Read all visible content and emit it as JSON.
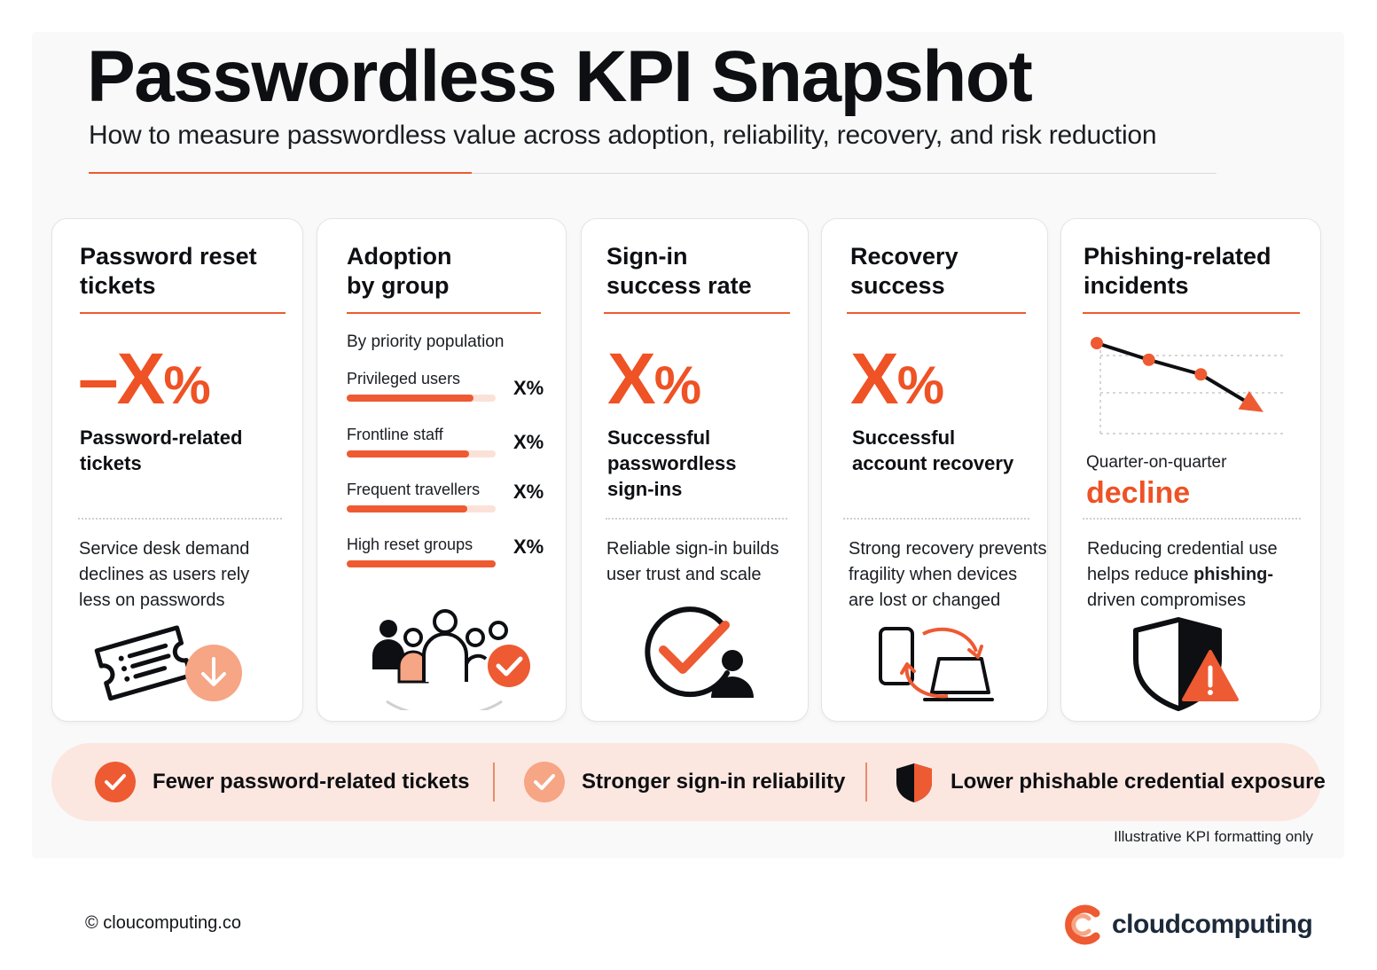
{
  "header": {
    "title": "Passwordless KPI Snapshot",
    "subtitle": "How to measure passwordless value across adoption, reliability, recovery,   and risk reduction"
  },
  "cards": [
    {
      "title": "Password reset\ntickets",
      "value_prefix": "–",
      "value": "X",
      "value_suffix": "%",
      "metric": "Password-related\ntickets",
      "description": "Service desk demand\ndeclines as users rely\nless on passwords",
      "icon": "ticket-down-arrow-icon"
    },
    {
      "title": "Adoption\nby group",
      "subheading": "By priority population",
      "groups": [
        {
          "label": "Privileged users",
          "value": "X%",
          "fill": 0.85
        },
        {
          "label": "Frontline staff",
          "value": "X%",
          "fill": 0.82
        },
        {
          "label": "Frequent travellers",
          "value": "X%",
          "fill": 0.81
        },
        {
          "label": "High reset groups",
          "value": "X%",
          "fill": 1.0
        }
      ],
      "icon": "user-group-check-icon"
    },
    {
      "title": "Sign-in\nsuccess rate",
      "value": "X",
      "value_suffix": "%",
      "metric": "Successful\npasswordless\nsign-ins",
      "description": "Reliable sign-in builds\nuser trust and scale",
      "icon": "check-circle-user-icon"
    },
    {
      "title": "Recovery\nsuccess",
      "value": "X",
      "value_suffix": "%",
      "metric": "Successful\naccount recovery",
      "description": "Strong recovery prevents\nfragility when devices\nare lost or changed",
      "icon": "device-sync-icon"
    },
    {
      "title": "Phishing-related\nincidents",
      "trend_label": "Quarter-on-quarter",
      "trend_value": "decline",
      "trend_points": [
        4,
        3.2,
        2.5,
        1
      ],
      "description_pre": "Reducing credential use\nhelps reduce ",
      "description_bold": "phishing-\n",
      "description_post": "driven compromises",
      "icon": "shield-warning-icon"
    }
  ],
  "banner": [
    {
      "label": "Fewer password-related tickets",
      "icon": "check-circle-icon"
    },
    {
      "label": "Stronger sign-in reliability",
      "icon": "check-circle-icon"
    },
    {
      "label": "Lower phishable credential exposure",
      "icon": "shield-icon"
    }
  ],
  "note": "Illustrative KPI formatting only",
  "footer": {
    "copyright": "© cloucomputing.co",
    "brand": "cloudcomputing",
    "brand_icon": "cloudcomputing-logo-icon"
  },
  "colors": {
    "accent": "#ee5a32",
    "accent_light": "#f6a585",
    "banner_bg": "#fce7e0",
    "dark": "#0d0f12"
  }
}
